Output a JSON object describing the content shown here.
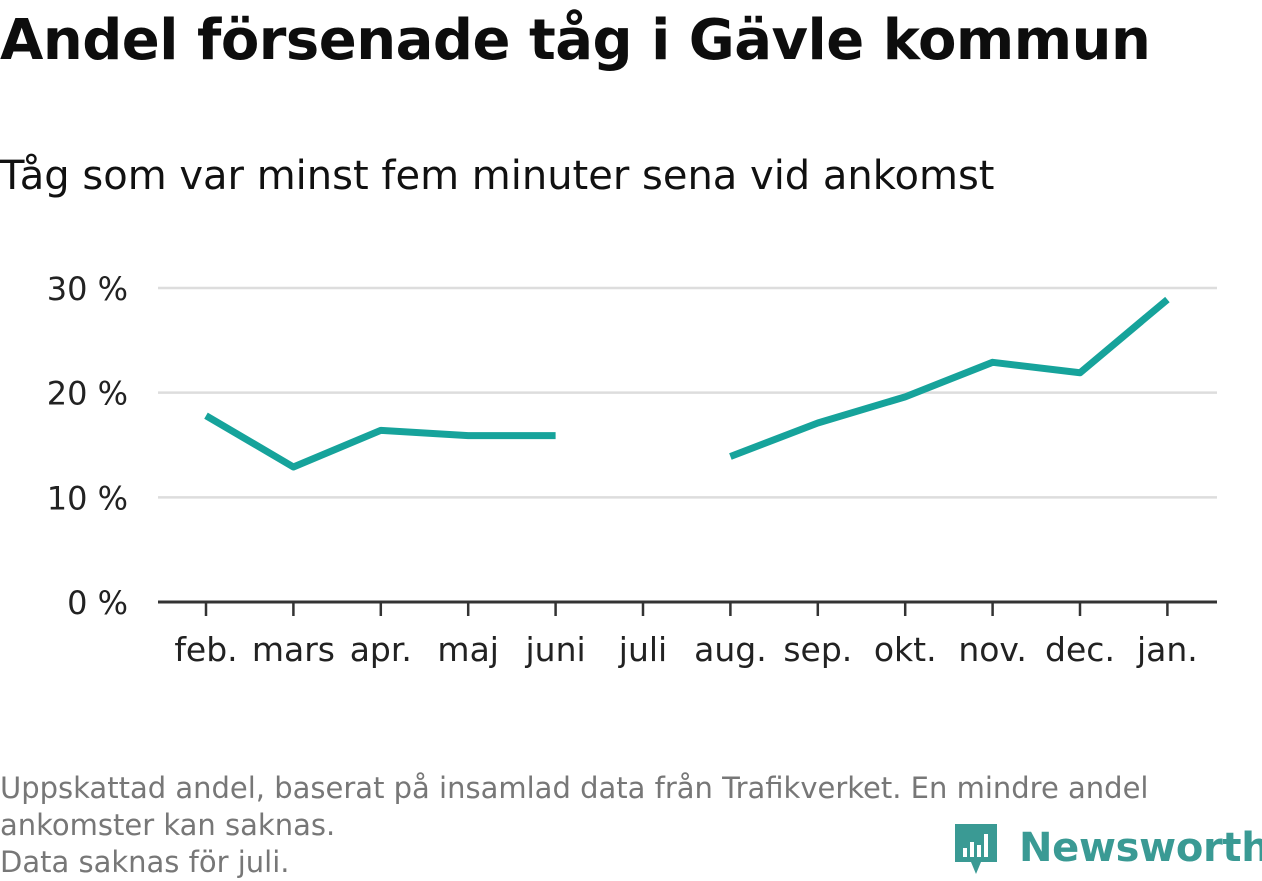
{
  "colors": {
    "line": "#16a39b",
    "grid": "#dddddd",
    "axis": "#333333",
    "brand": "#3a9a94"
  },
  "chart_data": {
    "type": "line",
    "title": "Andel försenade tåg i Gävle kommun",
    "subtitle": "Tåg som var minst fem minuter sena vid ankomst",
    "xlabel": "",
    "ylabel": "",
    "categories": [
      "feb.",
      "mars",
      "apr.",
      "maj",
      "juni",
      "juli",
      "aug.",
      "sep.",
      "okt.",
      "nov.",
      "dec.",
      "jan."
    ],
    "series": [
      {
        "values": [
          17.8,
          12.9,
          16.4,
          15.9,
          15.9,
          null,
          13.9,
          17.1,
          19.6,
          22.9,
          21.9,
          28.9
        ]
      }
    ],
    "ylim": [
      0,
      30
    ],
    "yticks": [
      0,
      10,
      20,
      30
    ],
    "ytick_labels": [
      "0 %",
      "10 %",
      "20 %",
      "30 %"
    ],
    "grid": true,
    "legend": "none"
  },
  "footnote": {
    "line1": "Uppskattad andel, baserat på insamlad data från Trafikverket. En mindre andel",
    "line2": "ankomster kan saknas.",
    "line3": "Data saknas för juli."
  },
  "logo": {
    "text": "Newsworthy",
    "icon": "bar-chart-badge-icon"
  }
}
